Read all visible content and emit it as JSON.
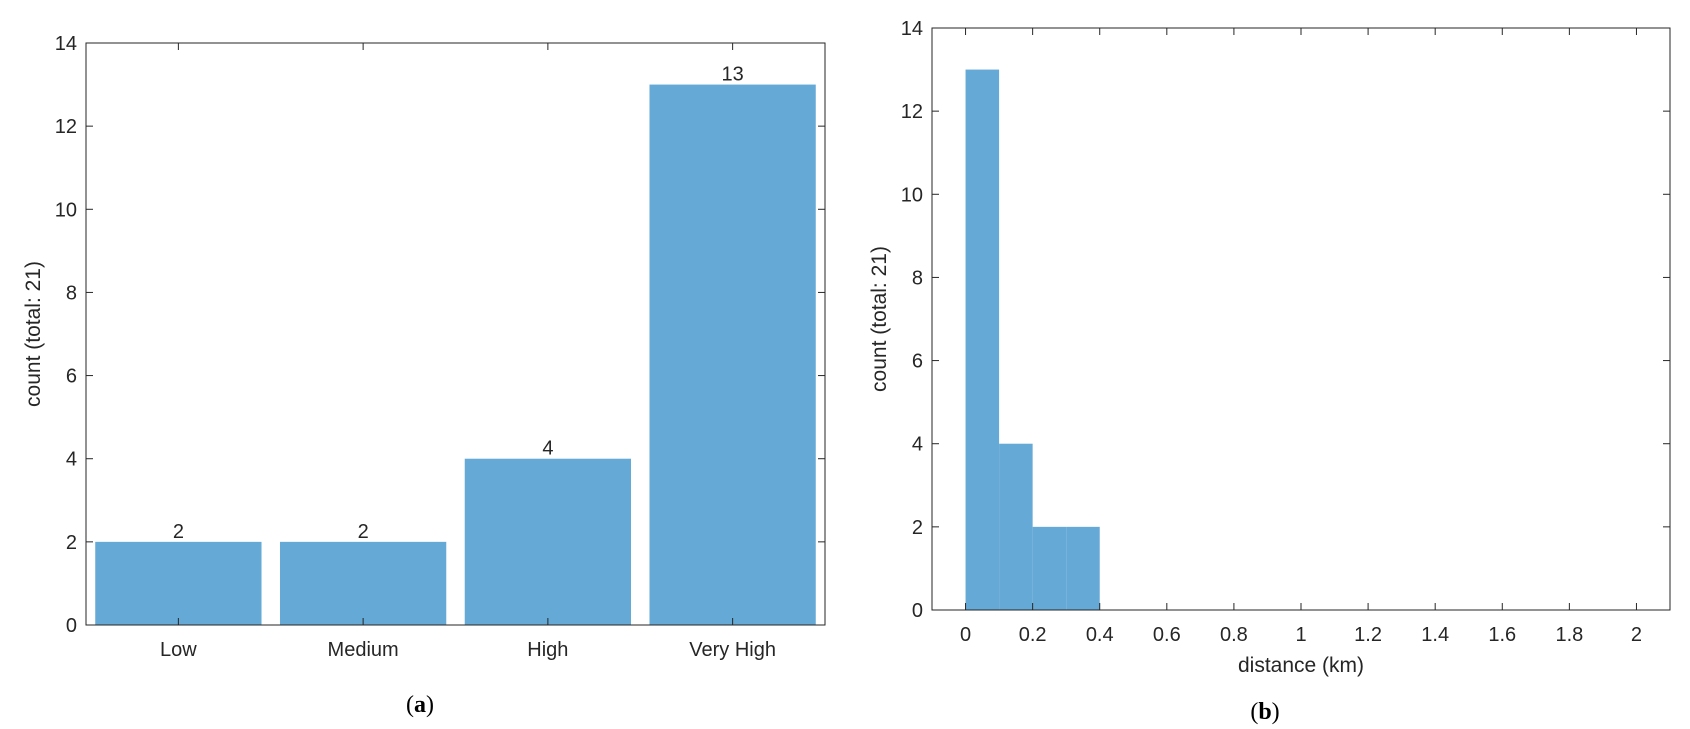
{
  "colors": {
    "bar": "#65a9d7",
    "axis": "#262626",
    "background": "#ffffff"
  },
  "chart_data": [
    {
      "type": "bar",
      "panel": {
        "open": "(",
        "letter": "a",
        "close": ")"
      },
      "categories": [
        "Low",
        "Medium",
        "High",
        "Very High"
      ],
      "values": [
        2,
        2,
        4,
        13
      ],
      "data_labels": [
        "2",
        "2",
        "4",
        "13"
      ],
      "title": "",
      "xlabel": "",
      "ylabel": "count (total: 21)",
      "ylim": [
        0,
        14
      ],
      "yticks": [
        0,
        2,
        4,
        6,
        8,
        10,
        12,
        14
      ],
      "ytick_labels": [
        "0",
        "2",
        "4",
        "6",
        "8",
        "10",
        "12",
        "14"
      ],
      "grid": false
    },
    {
      "type": "bar",
      "subtype": "histogram",
      "panel": {
        "open": "(",
        "letter": "b",
        "close": ")"
      },
      "bin_edges": [
        0,
        0.1,
        0.2,
        0.3,
        0.4
      ],
      "values": [
        13,
        4,
        2,
        2
      ],
      "title": "",
      "xlabel": "distance (km)",
      "ylabel": "count (total: 21)",
      "xlim": [
        -0.1,
        2.1
      ],
      "ylim": [
        0,
        14
      ],
      "xticks": [
        0,
        0.2,
        0.4,
        0.6,
        0.8,
        1,
        1.2,
        1.4,
        1.6,
        1.8,
        2
      ],
      "xtick_labels": [
        "0",
        "0.2",
        "0.4",
        "0.6",
        "0.8",
        "1",
        "1.2",
        "1.4",
        "1.6",
        "1.8",
        "2"
      ],
      "yticks": [
        0,
        2,
        4,
        6,
        8,
        10,
        12,
        14
      ],
      "ytick_labels": [
        "0",
        "2",
        "4",
        "6",
        "8",
        "10",
        "12",
        "14"
      ],
      "grid": false
    }
  ]
}
